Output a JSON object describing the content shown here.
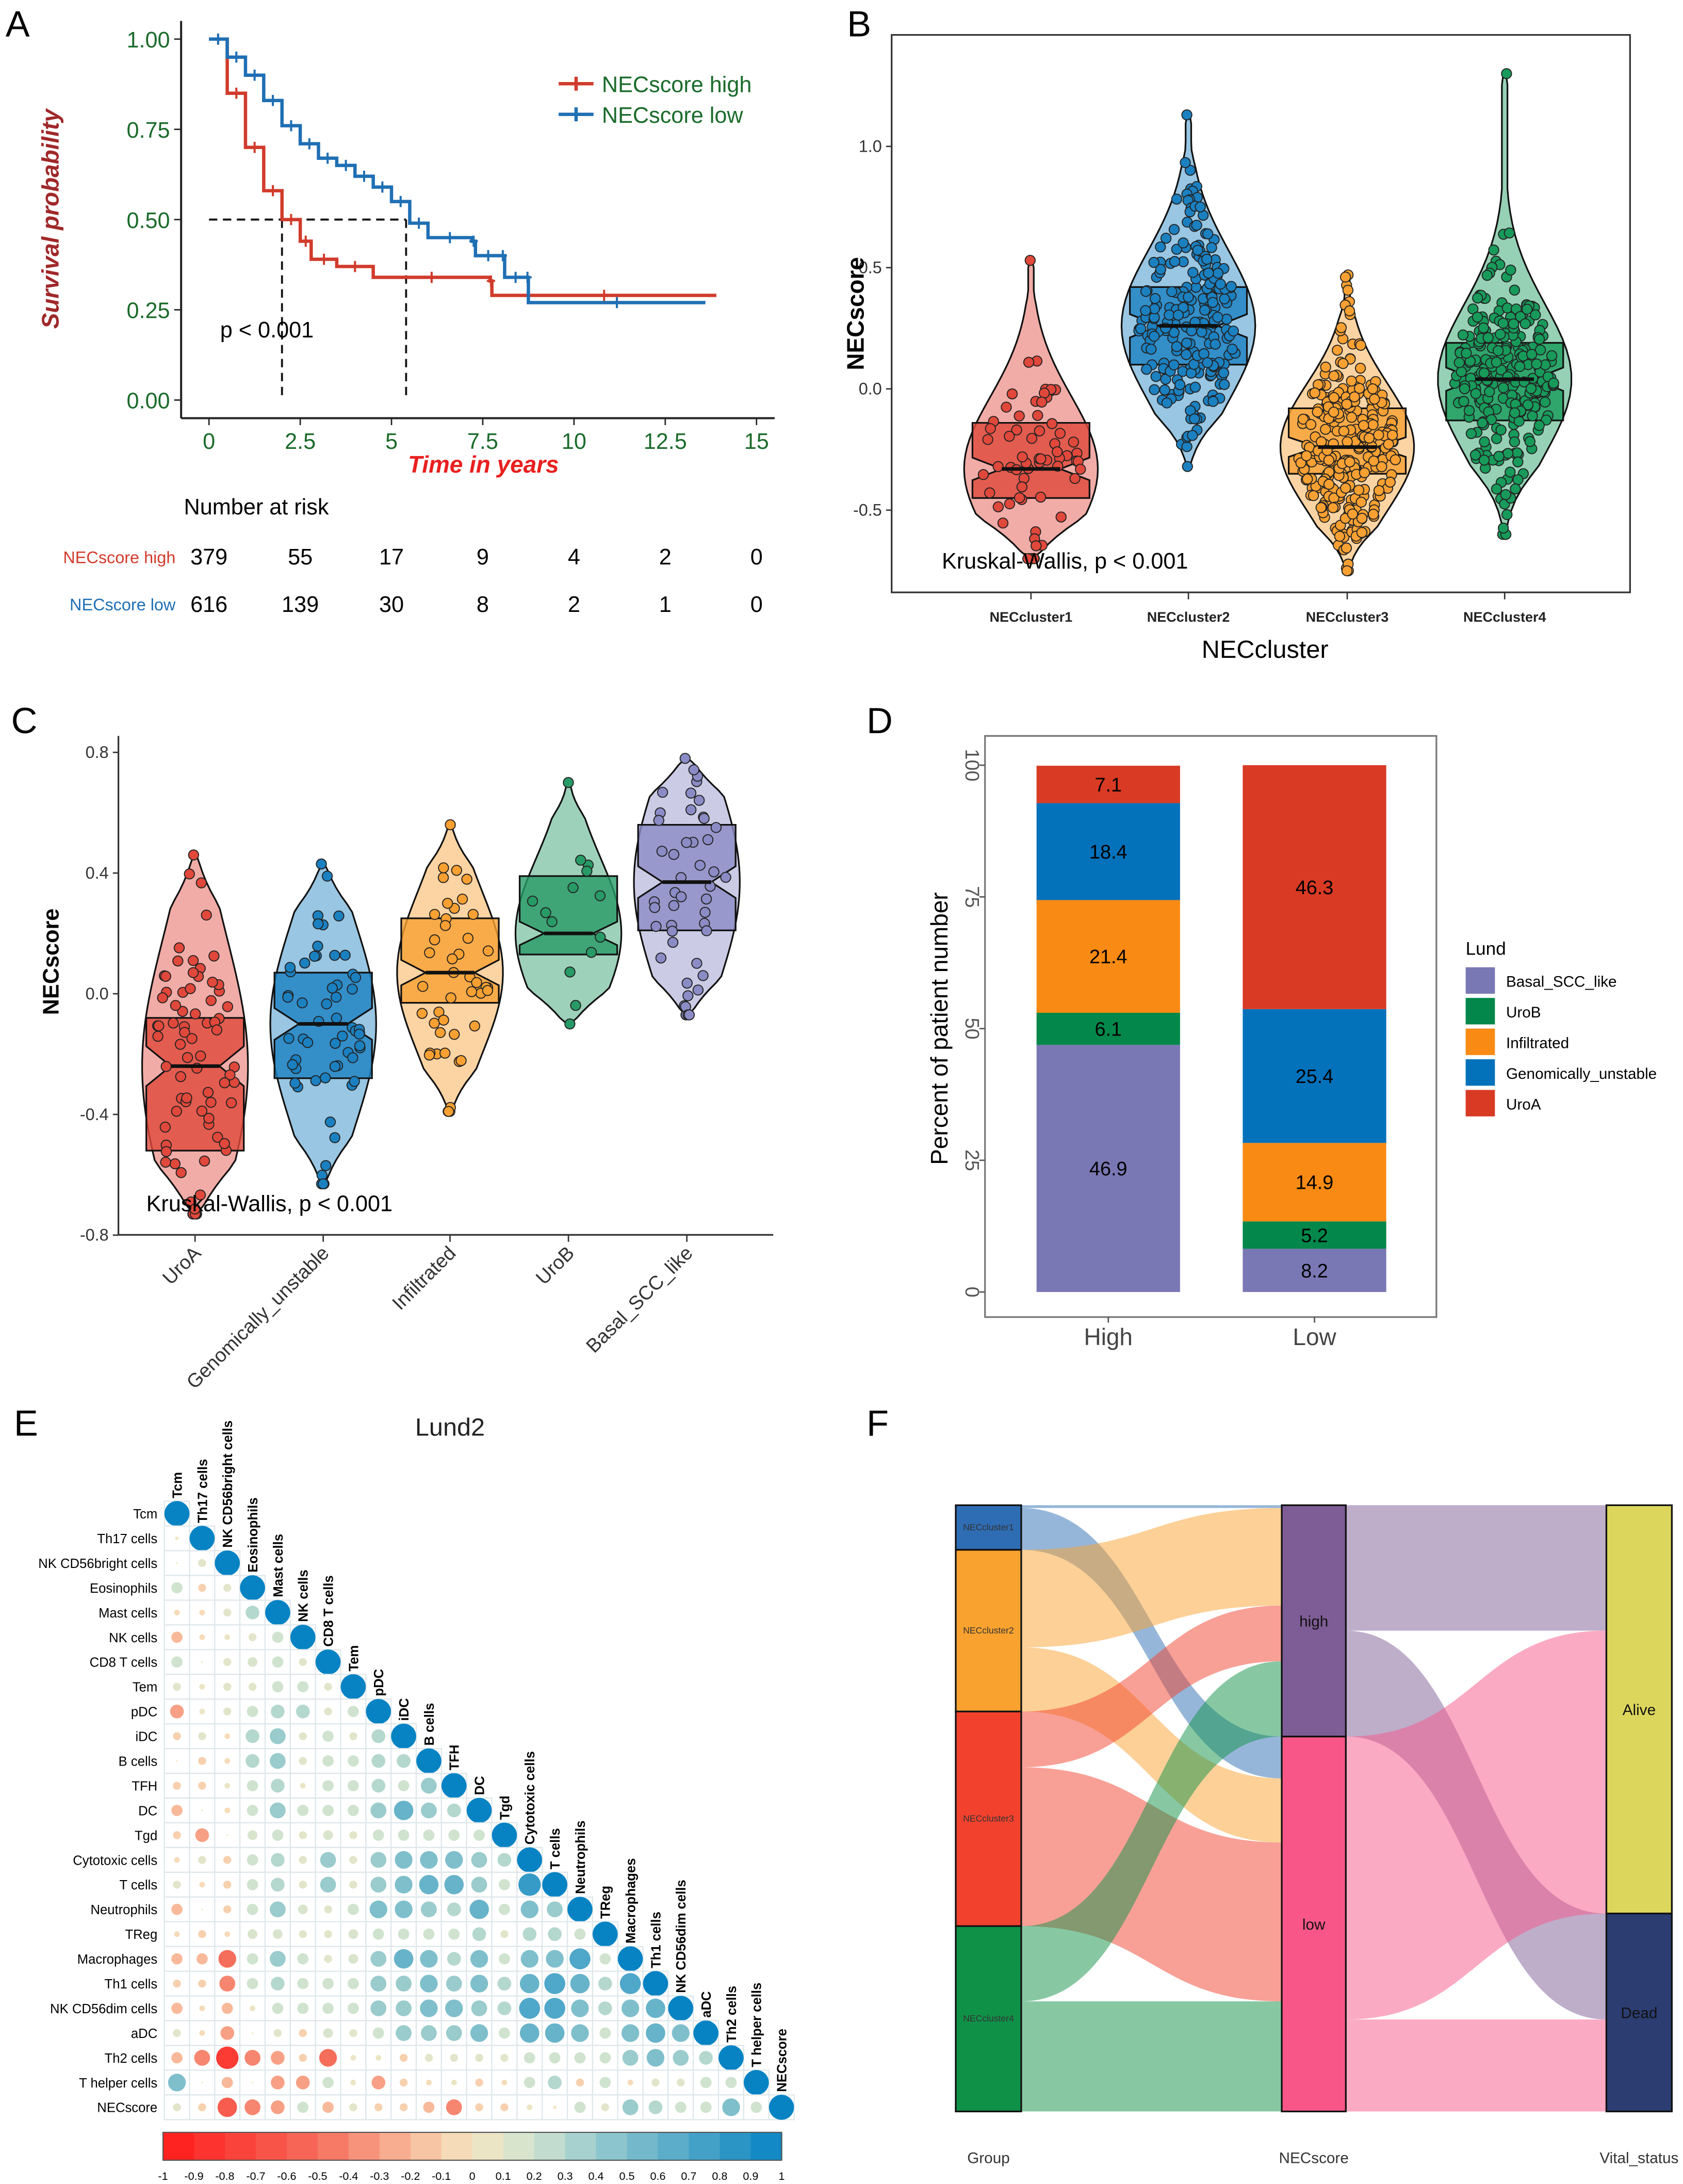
{
  "panels": {
    "A": "A",
    "B": "B",
    "C": "C",
    "D": "D",
    "E": "E",
    "F": "F"
  },
  "chart_data": [
    {
      "type": "line",
      "title": "",
      "xlabel": "Time in years",
      "ylabel": "Survival probability",
      "xlim": [
        0,
        15
      ],
      "ylim": [
        0,
        1
      ],
      "xticks": [
        "0",
        "2.5",
        "5",
        "7.5",
        "10",
        "12.5",
        "15"
      ],
      "yticks": [
        "0.00",
        "0.25",
        "0.50",
        "0.75",
        "1.00"
      ],
      "annotation": "p < 0.001",
      "legend_position": "top-right",
      "median_survival": [
        2.0,
        5.4
      ],
      "series": [
        {
          "name": "NECscore high",
          "color": "#d13b2b",
          "x": [
            0,
            0.5,
            1,
            1.5,
            2,
            2.5,
            2.8,
            3.5,
            4.5,
            7.7,
            7.75,
            13.9
          ],
          "y": [
            1,
            0.85,
            0.7,
            0.58,
            0.5,
            0.44,
            0.39,
            0.37,
            0.34,
            0.33,
            0.29,
            0.29
          ]
        },
        {
          "name": "NECscore low",
          "color": "#1f6fb4",
          "x": [
            0,
            0.5,
            1,
            1.5,
            2,
            2.5,
            3,
            3.5,
            4,
            4.5,
            5,
            5.5,
            6,
            7.2,
            7.3,
            8,
            8.1,
            8.7,
            8.75,
            13.6
          ],
          "y": [
            1,
            0.95,
            0.9,
            0.83,
            0.76,
            0.71,
            0.67,
            0.65,
            0.62,
            0.59,
            0.55,
            0.49,
            0.45,
            0.44,
            0.4,
            0.4,
            0.34,
            0.34,
            0.27,
            0.27
          ]
        }
      ],
      "risk_table": {
        "title": "Number at risk",
        "times": [
          0,
          2.5,
          5,
          7.5,
          10,
          12.5,
          15
        ],
        "rows": [
          {
            "label": "NECscore high",
            "color": "#d13b2b",
            "values": [
              "379",
              "55",
              "17",
              "9",
              "4",
              "2",
              "0"
            ]
          },
          {
            "label": "NECscore low",
            "color": "#1f6fb4",
            "values": [
              "616",
              "139",
              "30",
              "8",
              "2",
              "1",
              "0"
            ]
          }
        ]
      }
    },
    {
      "type": "violin",
      "title": "",
      "xlabel": "NECcluster",
      "ylabel": "NECscore",
      "ylim": [
        -0.8,
        1.35
      ],
      "yticks": [
        {
          "v": -0.5,
          "label": "-0.5"
        },
        {
          "v": 0,
          "label": "0.0"
        },
        {
          "v": 0.5,
          "label": "0.5"
        },
        {
          "v": 1.0,
          "label": "1.0"
        }
      ],
      "annotation": "Kruskal-Wallis, p < 0.001",
      "categories": [
        "NECcluster1",
        "NECcluster2",
        "NECcluster3",
        "NECcluster4"
      ],
      "groups": [
        {
          "median": -0.33,
          "q1": -0.45,
          "q3": -0.14,
          "min": -0.7,
          "max": 0.53,
          "color": "#e0483b"
        },
        {
          "median": 0.26,
          "q1": 0.1,
          "q3": 0.42,
          "min": -0.32,
          "max": 1.13,
          "color": "#1b80c0"
        },
        {
          "median": -0.24,
          "q1": -0.35,
          "q3": -0.08,
          "min": -0.75,
          "max": 0.47,
          "color": "#f8a032"
        },
        {
          "median": 0.04,
          "q1": -0.13,
          "q3": 0.19,
          "min": -0.6,
          "max": 1.3,
          "color": "#179a5a"
        }
      ]
    },
    {
      "type": "violin",
      "title": "",
      "xlabel": "",
      "ylabel": "NECscore",
      "ylim": [
        -0.8,
        0.8
      ],
      "yticks": [
        {
          "v": -0.8,
          "label": "-0.8"
        },
        {
          "v": -0.4,
          "label": "-0.4"
        },
        {
          "v": 0,
          "label": "0.0"
        },
        {
          "v": 0.4,
          "label": "0.4"
        },
        {
          "v": 0.8,
          "label": "0.8"
        }
      ],
      "annotation": "Kruskal-Wallis, p < 0.001",
      "categories": [
        "UroA",
        "Genomically_unstable",
        "Infiltrated",
        "UroB",
        "Basal_SCC_like"
      ],
      "groups": [
        {
          "median": -0.24,
          "q1": -0.52,
          "q3": -0.08,
          "min": -0.73,
          "max": 0.46,
          "color": "#e0483b"
        },
        {
          "median": -0.1,
          "q1": -0.28,
          "q3": 0.07,
          "min": -0.63,
          "max": 0.43,
          "color": "#1b80c0"
        },
        {
          "median": 0.07,
          "q1": -0.03,
          "q3": 0.25,
          "min": -0.39,
          "max": 0.56,
          "color": "#f8a032"
        },
        {
          "median": 0.2,
          "q1": 0.13,
          "q3": 0.39,
          "min": -0.1,
          "max": 0.7,
          "color": "#279a66"
        },
        {
          "median": 0.37,
          "q1": 0.21,
          "q3": 0.56,
          "min": -0.07,
          "max": 0.78,
          "color": "#8b8bc6"
        }
      ]
    },
    {
      "type": "bar",
      "stacked": true,
      "title": "",
      "xlabel": "",
      "ylabel": "Percent of patient number",
      "ylim": [
        0,
        100
      ],
      "yticks": [
        "0",
        "25",
        "50",
        "75",
        "100"
      ],
      "categories": [
        "High",
        "Low"
      ],
      "legend_title": "Lund",
      "legend_position": "right",
      "series": [
        {
          "name": "Basal_SCC_like",
          "color": "#7a77b5",
          "values": [
            46.9,
            8.2
          ],
          "labels": [
            "46.9",
            "8.2"
          ]
        },
        {
          "name": "UroB",
          "color": "#03874a",
          "values": [
            6.1,
            5.2
          ],
          "labels": [
            "6.1",
            "5.2"
          ]
        },
        {
          "name": "Infiltrated",
          "color": "#f98a14",
          "values": [
            21.4,
            14.9
          ],
          "labels": [
            "21.4",
            "14.9"
          ]
        },
        {
          "name": "Genomically_unstable",
          "color": "#0471bb",
          "values": [
            18.4,
            25.4
          ],
          "labels": [
            "18.4",
            "25.4"
          ]
        },
        {
          "name": "UroA",
          "color": "#d83a24",
          "values": [
            7.1,
            46.3
          ],
          "labels": [
            "7.1",
            "46.3"
          ]
        }
      ]
    },
    {
      "type": "heatmap",
      "title": "Lund2",
      "labels": [
        "Tcm",
        "Th17 cells",
        "NK CD56bright cells",
        "Eosinophils",
        "Mast cells",
        "NK cells",
        "CD8 T cells",
        "Tem",
        "pDC",
        "iDC",
        "B cells",
        "TFH",
        "DC",
        "Tgd",
        "Cytotoxic cells",
        "T cells",
        "Neutrophils",
        "TReg",
        "Macrophages",
        "Th1 cells",
        "NK CD56dim cells",
        "aDC",
        "Th2 cells",
        "T helper cells",
        "NECscore"
      ],
      "lower_triangle": [
        [],
        [
          0.02
        ],
        [
          0.0,
          0.1
        ],
        [
          0.2,
          -0.1,
          0.1
        ],
        [
          -0.05,
          -0.05,
          0.1,
          0.3
        ],
        [
          -0.2,
          -0.05,
          0.05,
          0.1,
          0.2
        ],
        [
          0.2,
          0.0,
          0.1,
          0.15,
          0.2,
          0.1
        ],
        [
          0.1,
          0.05,
          0.1,
          0.1,
          0.2,
          0.2,
          0.1
        ],
        [
          -0.3,
          0.05,
          0.1,
          0.2,
          0.3,
          0.3,
          0.1,
          0.2
        ],
        [
          -0.1,
          0.1,
          -0.05,
          0.3,
          0.4,
          0.1,
          0.2,
          0.1,
          0.3
        ],
        [
          0.0,
          -0.1,
          -0.05,
          0.3,
          0.4,
          0.1,
          0.2,
          0.2,
          0.3,
          0.3
        ],
        [
          -0.1,
          -0.1,
          0.05,
          0.2,
          0.3,
          0.05,
          0.2,
          0.2,
          0.3,
          0.2,
          0.4
        ],
        [
          -0.2,
          0.0,
          -0.05,
          0.2,
          0.4,
          0.2,
          0.2,
          0.2,
          0.4,
          0.6,
          0.4,
          0.3
        ],
        [
          -0.1,
          -0.3,
          0.0,
          0.15,
          0.2,
          0.1,
          0.15,
          0.1,
          0.2,
          0.2,
          0.2,
          0.2,
          0.2
        ],
        [
          -0.05,
          0.1,
          -0.1,
          0.2,
          0.3,
          0.1,
          0.4,
          0.1,
          0.4,
          0.5,
          0.5,
          0.5,
          0.4,
          0.3
        ],
        [
          0.1,
          -0.05,
          -0.1,
          0.2,
          0.3,
          0.1,
          0.4,
          0.1,
          0.4,
          0.5,
          0.6,
          0.6,
          0.4,
          0.2,
          0.8
        ],
        [
          -0.2,
          0.0,
          -0.1,
          0.2,
          0.4,
          0.15,
          0.1,
          0.2,
          0.5,
          0.5,
          0.4,
          0.3,
          0.6,
          0.2,
          0.5,
          0.4
        ],
        [
          -0.05,
          -0.1,
          -0.05,
          0.15,
          0.15,
          0.1,
          0.1,
          0.15,
          0.2,
          0.2,
          0.2,
          0.2,
          0.3,
          0.1,
          0.3,
          0.3,
          0.2
        ],
        [
          -0.2,
          -0.2,
          -0.5,
          0.2,
          0.4,
          0.2,
          0.1,
          0.15,
          0.4,
          0.6,
          0.5,
          0.3,
          0.5,
          0.2,
          0.5,
          0.5,
          0.7,
          0.2
        ],
        [
          -0.1,
          -0.1,
          -0.4,
          0.2,
          0.3,
          0.2,
          0.2,
          0.2,
          0.4,
          0.4,
          0.5,
          0.4,
          0.5,
          0.3,
          0.6,
          0.7,
          0.6,
          0.3,
          0.7
        ],
        [
          -0.2,
          -0.05,
          -0.2,
          0.05,
          0.2,
          0.2,
          0.2,
          0.2,
          0.4,
          0.4,
          0.5,
          0.5,
          0.4,
          0.3,
          0.7,
          0.7,
          0.5,
          0.3,
          0.5,
          0.6
        ],
        [
          0.1,
          -0.05,
          -0.3,
          0.0,
          0.1,
          -0.1,
          0.15,
          0.1,
          0.2,
          0.4,
          0.4,
          0.4,
          0.5,
          0.2,
          0.6,
          0.6,
          0.5,
          0.2,
          0.5,
          0.6,
          0.5
        ],
        [
          -0.2,
          -0.4,
          -0.8,
          -0.4,
          -0.3,
          -0.1,
          -0.5,
          0.05,
          0.05,
          -0.1,
          0.1,
          0.1,
          0.1,
          0.1,
          0.2,
          0.2,
          0.2,
          0.2,
          0.4,
          0.5,
          0.4,
          0.3
        ],
        [
          0.5,
          0.0,
          -0.2,
          0.0,
          -0.3,
          -0.3,
          0.2,
          0.05,
          -0.3,
          -0.1,
          -0.05,
          0.05,
          -0.1,
          -0.05,
          0.2,
          0.3,
          -0.1,
          0.2,
          -0.05,
          0.1,
          0.1,
          0.2,
          0.2
        ],
        [
          0.1,
          -0.1,
          -0.6,
          -0.4,
          -0.3,
          0.2,
          -0.2,
          0.1,
          -0.1,
          -0.1,
          -0.2,
          -0.4,
          -0.1,
          -0.1,
          0.05,
          0.02,
          0.2,
          0.1,
          0.4,
          0.3,
          0.2,
          0.2,
          0.5,
          0.2
        ]
      ],
      "colorbar_ticks": [
        "-1",
        "-0.9",
        "-0.8",
        "-0.7",
        "-0.6",
        "-0.5",
        "-0.4",
        "-0.3",
        "-0.2",
        "-0.1",
        "0",
        "0.1",
        "0.2",
        "0.3",
        "0.4",
        "0.5",
        "0.6",
        "0.7",
        "0.8",
        "0.9",
        "1"
      ],
      "colorbar_range": [
        -1,
        1
      ]
    },
    {
      "type": "sankey",
      "axes": [
        "Group",
        "NECscore",
        "Vital_status"
      ],
      "nodes": [
        {
          "id": "NECcluster1",
          "label": "NECcluster1",
          "column": 0,
          "color": "#2e6db4"
        },
        {
          "id": "NECcluster2",
          "label": "NECcluster2",
          "column": 0,
          "color": "#f9a22f"
        },
        {
          "id": "NECcluster3",
          "label": "NECcluster3",
          "column": 0,
          "color": "#f2422e"
        },
        {
          "id": "NECcluster4",
          "label": "NECcluster4",
          "column": 0,
          "color": "#0f9148"
        },
        {
          "id": "high",
          "label": "high",
          "column": 1,
          "color": "#7e5d96"
        },
        {
          "id": "low",
          "label": "low",
          "column": 1,
          "color": "#f85689"
        },
        {
          "id": "Alive",
          "label": "Alive",
          "column": 2,
          "color": "#dcd65d"
        },
        {
          "id": "Dead",
          "label": "Dead",
          "column": 2,
          "color": "#2c3d72"
        }
      ],
      "links": [
        {
          "source": "NECcluster1",
          "target": "high",
          "value": 2
        },
        {
          "source": "NECcluster1",
          "target": "low",
          "value": 30
        },
        {
          "source": "NECcluster2",
          "target": "high",
          "value": 70
        },
        {
          "source": "NECcluster2",
          "target": "low",
          "value": 46
        },
        {
          "source": "NECcluster3",
          "target": "high",
          "value": 40
        },
        {
          "source": "NECcluster3",
          "target": "low",
          "value": 114
        },
        {
          "source": "NECcluster4",
          "target": "high",
          "value": 54
        },
        {
          "source": "NECcluster4",
          "target": "low",
          "value": 79
        },
        {
          "source": "high",
          "target": "Alive",
          "value": 90
        },
        {
          "source": "high",
          "target": "Dead",
          "value": 76
        },
        {
          "source": "low",
          "target": "Alive",
          "value": 203
        },
        {
          "source": "low",
          "target": "Dead",
          "value": 66
        }
      ]
    }
  ]
}
